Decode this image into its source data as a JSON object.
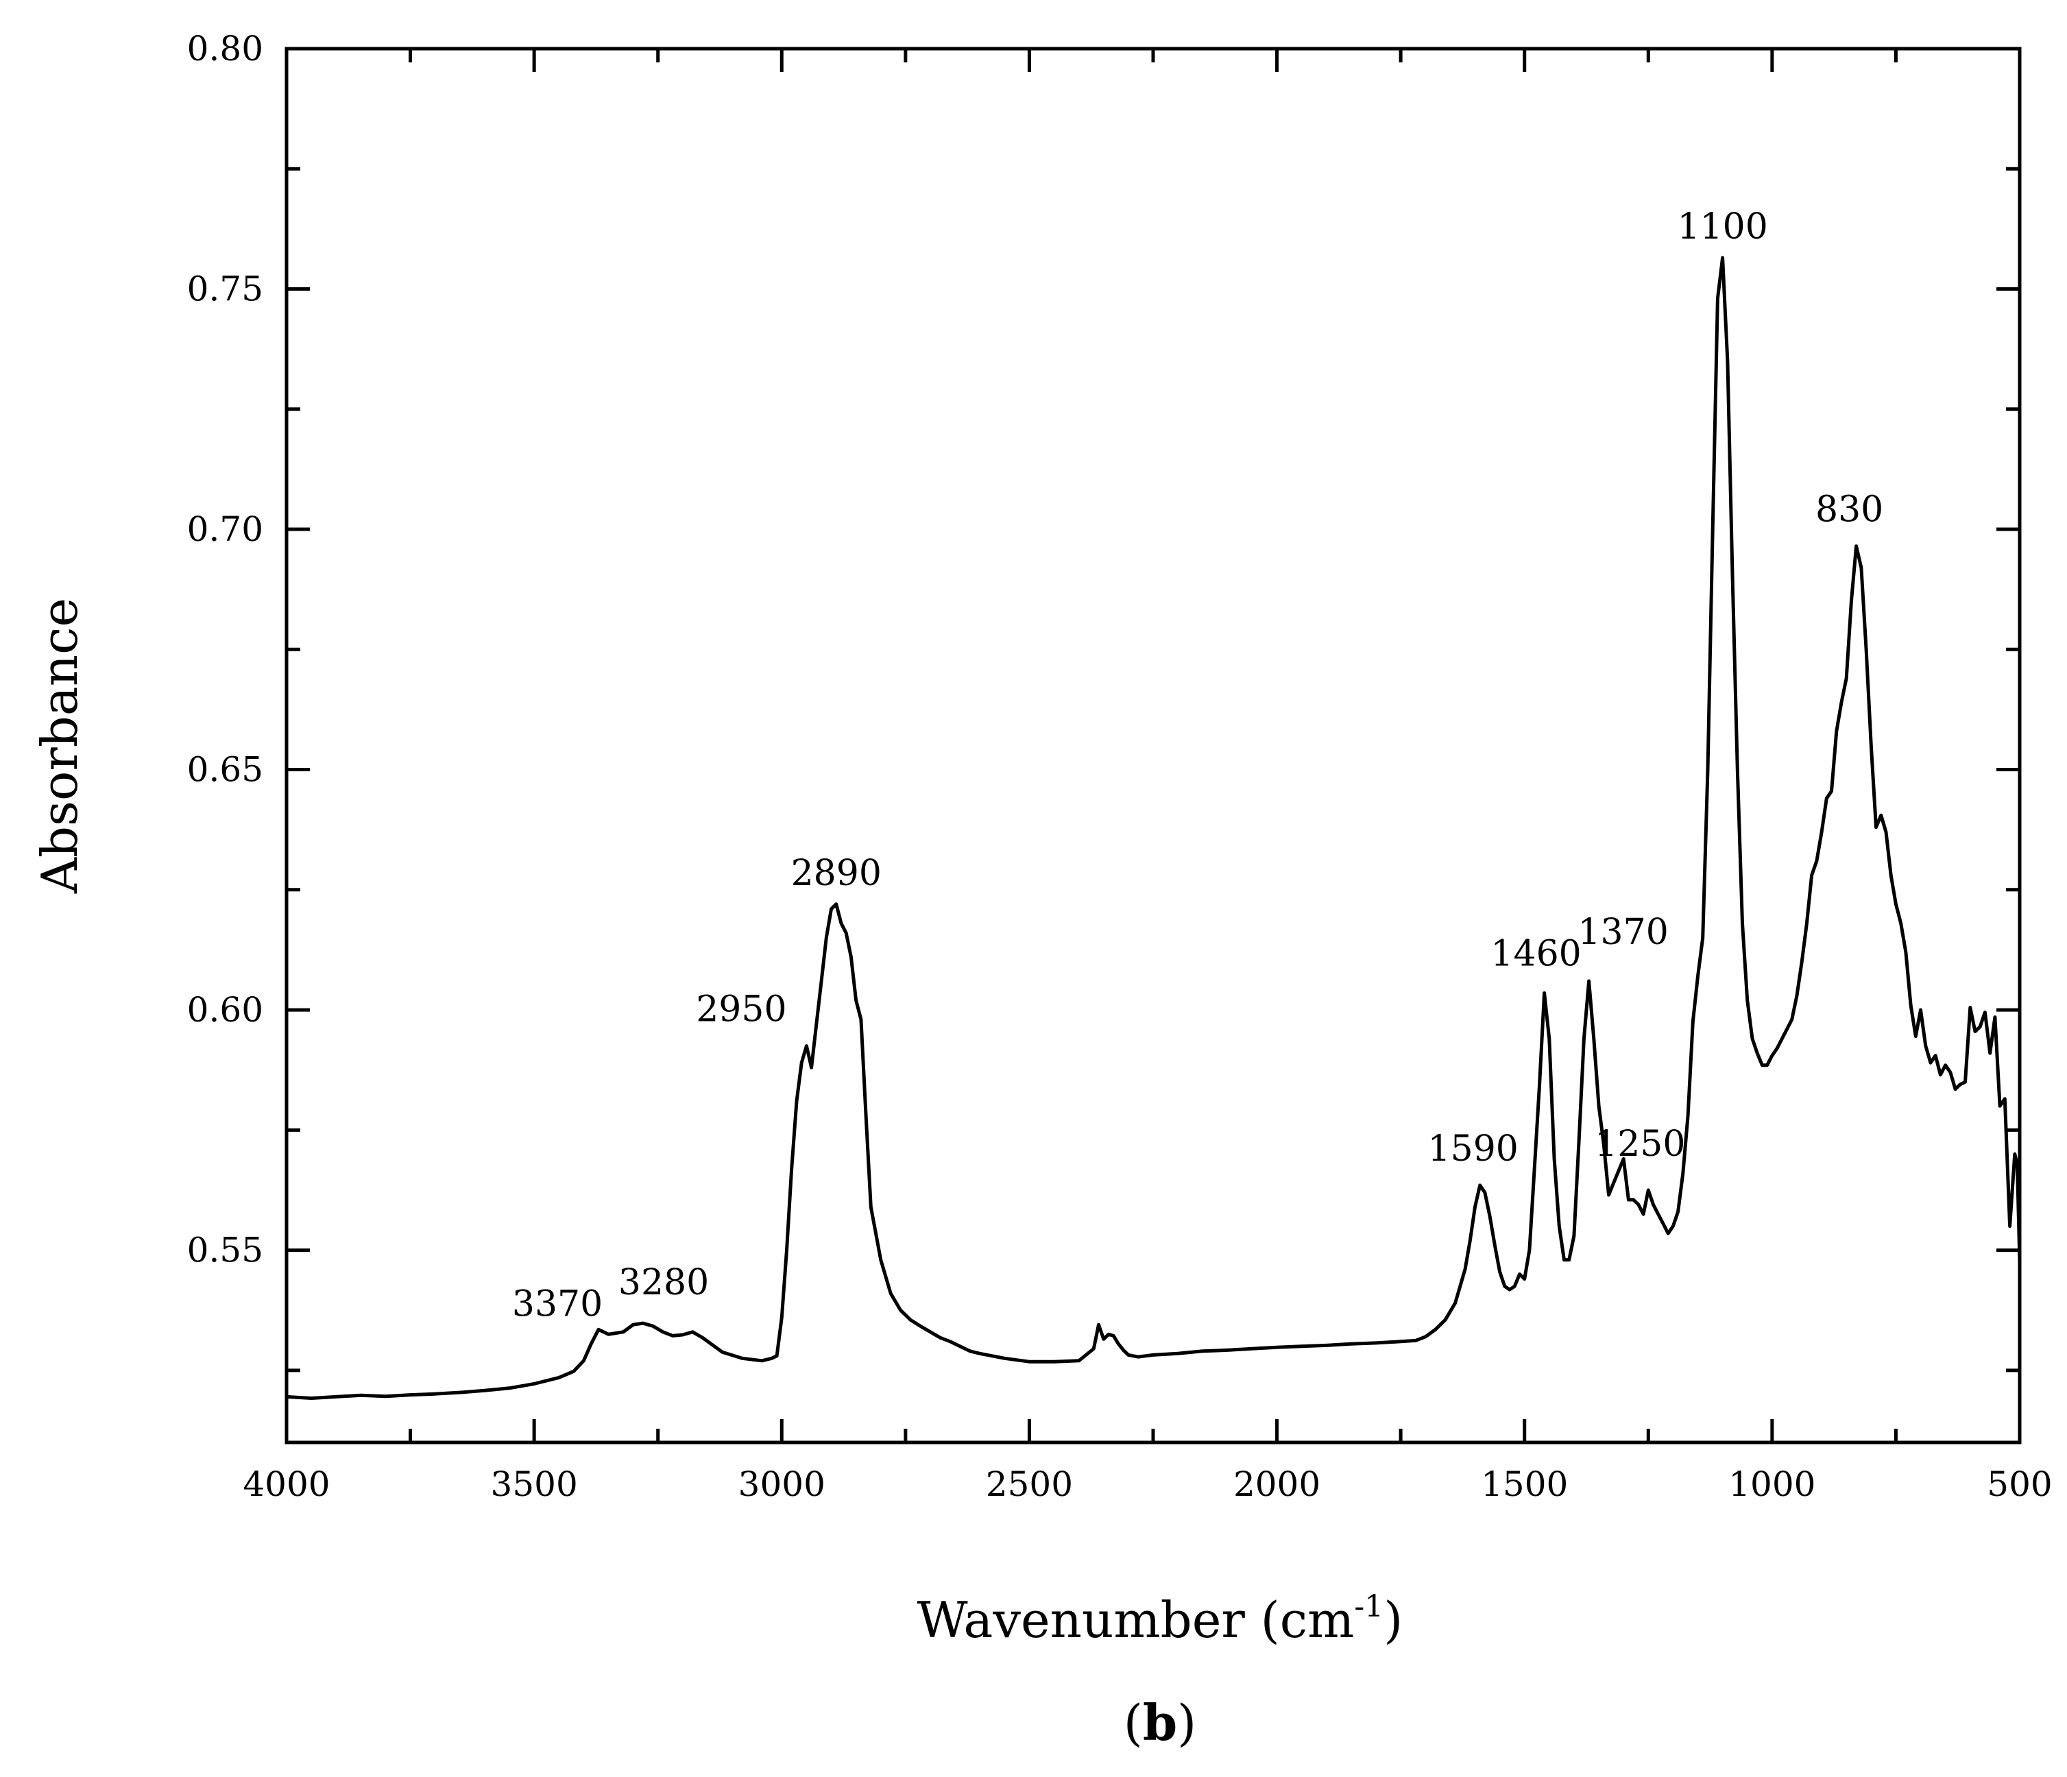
{
  "chart_data": {
    "type": "line",
    "title": "",
    "xlabel": "Wavenumber (cm",
    "xlabel_sup": "-1",
    "xlabel_close": ")",
    "ylabel": "Absorbance",
    "panel_label": "b",
    "panel_label_open": "(",
    "panel_label_close": ")",
    "xlim": [
      4000,
      500
    ],
    "ylim": [
      0.51,
      0.8
    ],
    "x_ticks": [
      4000,
      3500,
      3000,
      2500,
      2000,
      1500,
      1000,
      500
    ],
    "x_tick_labels": [
      "4000",
      "3500",
      "3000",
      "2500",
      "2000",
      "1500",
      "1000",
      "500"
    ],
    "y_ticks": [
      0.55,
      0.6,
      0.65,
      0.7,
      0.75,
      0.8
    ],
    "y_tick_labels": [
      "0.55",
      "0.60",
      "0.65",
      "0.70",
      "0.75",
      "0.80"
    ],
    "grid": false,
    "line_color": "#000000",
    "series": [
      {
        "name": "spectrum",
        "x": [
          4000,
          3950,
          3900,
          3850,
          3800,
          3750,
          3700,
          3650,
          3600,
          3550,
          3500,
          3450,
          3420,
          3400,
          3385,
          3370,
          3350,
          3320,
          3300,
          3280,
          3260,
          3240,
          3220,
          3200,
          3180,
          3160,
          3120,
          3080,
          3040,
          3020,
          3010,
          3000,
          2990,
          2980,
          2970,
          2960,
          2950,
          2940,
          2930,
          2920,
          2910,
          2900,
          2890,
          2880,
          2870,
          2860,
          2850,
          2840,
          2830,
          2820,
          2800,
          2780,
          2760,
          2740,
          2720,
          2700,
          2680,
          2660,
          2640,
          2620,
          2600,
          2550,
          2500,
          2450,
          2400,
          2370,
          2360,
          2350,
          2340,
          2330,
          2320,
          2310,
          2300,
          2280,
          2250,
          2200,
          2150,
          2100,
          2050,
          2000,
          1950,
          1900,
          1850,
          1800,
          1750,
          1720,
          1700,
          1680,
          1660,
          1640,
          1620,
          1610,
          1600,
          1590,
          1580,
          1570,
          1560,
          1550,
          1540,
          1530,
          1520,
          1510,
          1500,
          1490,
          1480,
          1470,
          1460,
          1450,
          1440,
          1430,
          1420,
          1410,
          1400,
          1390,
          1380,
          1370,
          1360,
          1350,
          1340,
          1330,
          1320,
          1310,
          1300,
          1290,
          1280,
          1270,
          1260,
          1250,
          1240,
          1230,
          1220,
          1210,
          1200,
          1190,
          1180,
          1170,
          1160,
          1150,
          1140,
          1130,
          1120,
          1110,
          1100,
          1090,
          1080,
          1070,
          1060,
          1050,
          1040,
          1030,
          1020,
          1010,
          1000,
          990,
          980,
          970,
          960,
          950,
          940,
          930,
          920,
          910,
          900,
          890,
          880,
          870,
          860,
          850,
          840,
          830,
          820,
          810,
          800,
          790,
          780,
          770,
          760,
          750,
          740,
          730,
          720,
          710,
          700,
          690,
          680,
          670,
          660,
          650,
          640,
          630,
          620,
          610,
          600,
          590,
          580,
          570,
          560,
          550,
          540,
          530,
          520,
          510,
          505,
          500
        ],
        "y": [
          0.5195,
          0.5192,
          0.5195,
          0.5198,
          0.5196,
          0.5199,
          0.5201,
          0.5204,
          0.5208,
          0.5213,
          0.5222,
          0.5235,
          0.5248,
          0.527,
          0.5305,
          0.5335,
          0.5325,
          0.533,
          0.5345,
          0.5348,
          0.5342,
          0.533,
          0.5322,
          0.5324,
          0.533,
          0.5318,
          0.5288,
          0.5275,
          0.527,
          0.5275,
          0.528,
          0.536,
          0.55,
          0.567,
          0.581,
          0.589,
          0.5925,
          0.588,
          0.597,
          0.606,
          0.615,
          0.621,
          0.622,
          0.618,
          0.616,
          0.611,
          0.602,
          0.598,
          0.578,
          0.559,
          0.548,
          0.541,
          0.5375,
          0.5355,
          0.5342,
          0.533,
          0.5318,
          0.531,
          0.53,
          0.529,
          0.5285,
          0.5275,
          0.5268,
          0.5268,
          0.527,
          0.5295,
          0.5345,
          0.5315,
          0.5325,
          0.5322,
          0.5305,
          0.5292,
          0.5282,
          0.5278,
          0.5282,
          0.5285,
          0.529,
          0.5292,
          0.5295,
          0.5298,
          0.53,
          0.5302,
          0.5305,
          0.5307,
          0.531,
          0.5312,
          0.532,
          0.5335,
          0.5355,
          0.539,
          0.546,
          0.552,
          0.559,
          0.5635,
          0.562,
          0.557,
          0.551,
          0.5455,
          0.5425,
          0.5418,
          0.5425,
          0.545,
          0.544,
          0.55,
          0.567,
          0.584,
          0.6035,
          0.594,
          0.569,
          0.555,
          0.548,
          0.548,
          0.553,
          0.573,
          0.594,
          0.606,
          0.594,
          0.58,
          0.572,
          0.5615,
          0.564,
          0.5665,
          0.569,
          0.5605,
          0.5605,
          0.5595,
          0.5575,
          0.5625,
          0.5595,
          0.5575,
          0.5555,
          0.5535,
          0.555,
          0.558,
          0.566,
          0.578,
          0.5975,
          0.607,
          0.615,
          0.65,
          0.7,
          0.748,
          0.7565,
          0.735,
          0.69,
          0.65,
          0.618,
          0.602,
          0.594,
          0.591,
          0.5885,
          0.5885,
          0.5905,
          0.592,
          0.594,
          0.596,
          0.598,
          0.603,
          0.61,
          0.618,
          0.628,
          0.631,
          0.637,
          0.644,
          0.6455,
          0.658,
          0.664,
          0.669,
          0.685,
          0.6965,
          0.692,
          0.675,
          0.655,
          0.638,
          0.6405,
          0.637,
          0.628,
          0.622,
          0.618,
          0.612,
          0.601,
          0.5945,
          0.6,
          0.5925,
          0.589,
          0.5905,
          0.5865,
          0.5885,
          0.587,
          0.5835,
          0.5845,
          0.585,
          0.6005,
          0.5955,
          0.5965,
          0.5995,
          0.591,
          0.5985,
          0.58,
          0.5815,
          0.555,
          0.57,
          0.568,
          0.5475
        ]
      }
    ],
    "annotations": [
      {
        "text": "3370",
        "x": 3370,
        "y": 0.5335
      },
      {
        "text": "3280",
        "x": 3280,
        "y": 0.5348
      },
      {
        "text": "2950",
        "x": 2950,
        "y": 0.5925
      },
      {
        "text": "2890",
        "x": 2890,
        "y": 0.622
      },
      {
        "text": "1590",
        "x": 1590,
        "y": 0.5635
      },
      {
        "text": "1460",
        "x": 1460,
        "y": 0.6035
      },
      {
        "text": "1370",
        "x": 1370,
        "y": 0.606
      },
      {
        "text": "1250",
        "x": 1250,
        "y": 0.5625
      },
      {
        "text": "1100",
        "x": 1100,
        "y": 0.7565
      },
      {
        "text": "830",
        "x": 830,
        "y": 0.6965
      }
    ]
  }
}
